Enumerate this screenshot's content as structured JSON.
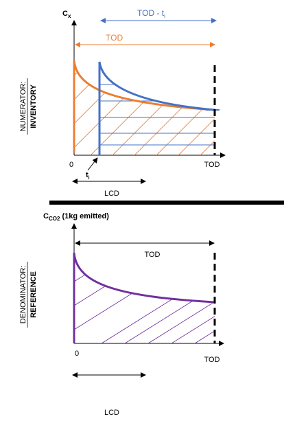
{
  "top_panel": {
    "y_axis_label": "C",
    "y_axis_sub": "x",
    "top_span_label": "TOD - t",
    "top_span_sub": "i",
    "orange_span_label": "TOD",
    "side_title_normal": "NUMERATOR:",
    "side_title_bold": "INVENTORY",
    "x_origin_label": "0",
    "x_ti_label": "t",
    "x_ti_sub": "i",
    "x_end_label": "TOD",
    "lcd_label": "LCD",
    "colors": {
      "orange": "#ED7D31",
      "blue": "#4472C4"
    }
  },
  "bottom_panel": {
    "y_axis_label": "C",
    "y_axis_sub": "CO2",
    "y_axis_suffix": " (1kg emitted)",
    "span_label": "TOD",
    "side_title_normal": "DENOMINATOR:",
    "side_title_bold": "REFERENCE",
    "x_origin_label": "0",
    "x_end_label": "TOD",
    "lcd_label": "LCD",
    "colors": {
      "purple": "#7030A0"
    }
  }
}
